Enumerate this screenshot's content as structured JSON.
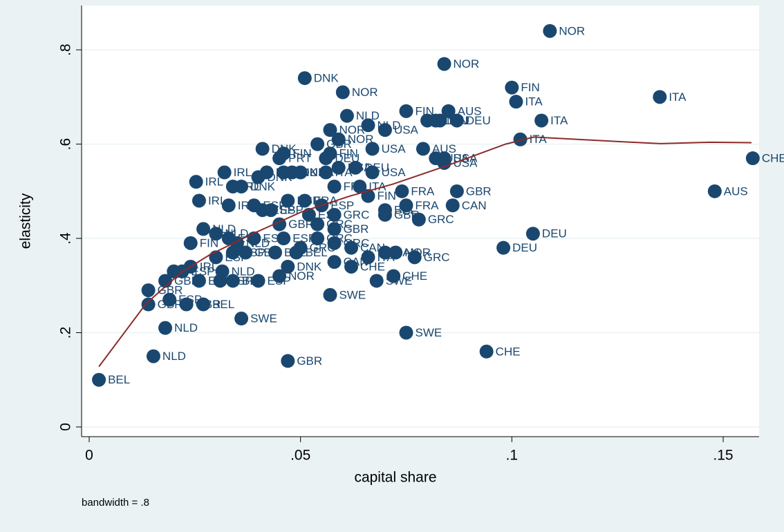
{
  "chart_data": {
    "type": "scatter",
    "xlabel": "capital share",
    "ylabel": "elasticity",
    "note": "bandwidth = .8",
    "xlim": [
      -0.0018,
      0.1585
    ],
    "ylim": [
      -0.0206,
      0.894
    ],
    "xticks": [
      0,
      {
        "value": 0.05,
        "label": ".05"
      },
      {
        "value": 0.1,
        "label": ".1"
      },
      {
        "value": 0.15,
        "label": ".15"
      }
    ],
    "yticks": [
      0,
      {
        "value": 0.2,
        "label": ".2"
      },
      {
        "value": 0.4,
        "label": ".4"
      },
      {
        "value": 0.6,
        "label": ".6"
      },
      {
        "value": 0.8,
        "label": ".8"
      }
    ],
    "grid": true,
    "color": "#1a476f",
    "x": [
      0.0023,
      0.0152,
      0.047,
      0.018,
      0.036,
      0.075,
      0.094,
      0.109,
      0.084,
      0.051,
      0.06,
      0.1,
      0.101,
      0.135,
      0.107,
      0.157,
      0.148,
      0.105,
      0.098,
      0.087,
      0.086,
      0.078,
      0.077,
      0.0725,
      0.072,
      0.068,
      0.057,
      0.074,
      0.075,
      0.079,
      0.084,
      0.102,
      0.032,
      0.041,
      0.026,
      0.0253,
      0.024,
      0.014,
      0.014,
      0.027,
      0.0315,
      0.027,
      0.061,
      0.067,
      0.058,
      0.085,
      0.084,
      0.075,
      0.08,
      0.082,
      0.083,
      0.087,
      0.066,
      0.07,
      0.057,
      0.059,
      0.054,
      0.067,
      0.046,
      0.056,
      0.057,
      0.082,
      0.046,
      0.048,
      0.05,
      0.059,
      0.063,
      0.056,
      0.058,
      0.064,
      0.066,
      0.039,
      0.043,
      0.047,
      0.051,
      0.055,
      0.058,
      0.052,
      0.045,
      0.054,
      0.07,
      0.07,
      0.033,
      0.035,
      0.039,
      0.046,
      0.05,
      0.054,
      0.058,
      0.062,
      0.07,
      0.066,
      0.062,
      0.047,
      0.03,
      0.034,
      0.037,
      0.044,
      0.049,
      0.058,
      0.02,
      0.022,
      0.026,
      0.031,
      0.034,
      0.04,
      0.045,
      0.019,
      0.023,
      0.018,
      0.024,
      0.03,
      0.036,
      0.034,
      0.04,
      0.042,
      0.045,
      0.033,
      0.041
    ],
    "values": [
      0.1,
      0.15,
      0.14,
      0.21,
      0.23,
      0.2,
      0.16,
      0.84,
      0.77,
      0.74,
      0.71,
      0.72,
      0.69,
      0.7,
      0.65,
      0.57,
      0.5,
      0.41,
      0.38,
      0.5,
      0.47,
      0.44,
      0.36,
      0.37,
      0.32,
      0.31,
      0.28,
      0.5,
      0.47,
      0.59,
      0.56,
      0.61,
      0.54,
      0.59,
      0.48,
      0.52,
      0.39,
      0.29,
      0.26,
      0.26,
      0.33,
      0.42,
      0.66,
      0.54,
      0.42,
      0.67,
      0.57,
      0.67,
      0.65,
      0.65,
      0.65,
      0.65,
      0.64,
      0.63,
      0.63,
      0.61,
      0.6,
      0.59,
      0.58,
      0.57,
      0.58,
      0.57,
      0.54,
      0.54,
      0.54,
      0.55,
      0.55,
      0.54,
      0.51,
      0.51,
      0.49,
      0.47,
      0.46,
      0.48,
      0.48,
      0.47,
      0.45,
      0.45,
      0.43,
      0.43,
      0.46,
      0.45,
      0.4,
      0.39,
      0.4,
      0.4,
      0.38,
      0.4,
      0.39,
      0.38,
      0.37,
      0.36,
      0.34,
      0.34,
      0.36,
      0.37,
      0.37,
      0.37,
      0.37,
      0.35,
      0.33,
      0.33,
      0.31,
      0.31,
      0.31,
      0.31,
      0.32,
      0.27,
      0.26,
      0.31,
      0.34,
      0.41,
      0.51,
      0.51,
      0.53,
      0.54,
      0.57,
      0.47,
      0.46
    ],
    "labels": [
      "BEL",
      "NLD",
      "GBR",
      "NLD",
      "SWE",
      "SWE",
      "CHE",
      "NOR",
      "NOR",
      "DNK",
      "NOR",
      "FIN",
      "ITA",
      "ITA",
      "ITA",
      "CHE",
      "AUS",
      "DEU",
      "DEU",
      "GBR",
      "CAN",
      "GRC",
      "GRC",
      "NOR",
      "CHE",
      "SWE",
      "SWE",
      "FRA",
      "FRA",
      "AUS",
      "USA",
      "ITA",
      "IRL",
      "DNK",
      "IRL",
      "IRL",
      "FIN",
      "GBR",
      "GBR",
      "BEL",
      "NLD",
      "NLD",
      "NLD",
      "USA",
      "GBR",
      "AUS",
      "USA",
      "FIN",
      "FIN",
      "DEU",
      "FIN",
      "DEU",
      "NLD",
      "USA",
      "NOR",
      "NOR",
      "GBR",
      "USA",
      "FIN",
      "DEU",
      "FIN",
      "USA",
      "DNK",
      "DNK",
      "USA",
      "USA",
      "DEU",
      "ITA",
      "FRA",
      "ITA",
      "FIN",
      "ESP",
      "ESP",
      "ESP",
      "FRA",
      "ESP",
      "GRC",
      "ESP",
      "GBR",
      "GRC",
      "BEL",
      "GBR",
      "ESP",
      "NLD",
      "ESP",
      "ESP",
      "GRC",
      "GRC",
      "GRC",
      "CAN",
      "CAN",
      "ITA",
      "CHE",
      "DNK",
      "ESP",
      "ESP",
      "GBR",
      "BEL",
      "BEL",
      "CAN",
      "IRL",
      "ESP",
      "ESP",
      "ESP",
      "BEL",
      "ESP",
      "NOR",
      "ESP",
      "GBR",
      "GBR",
      "IRL",
      "NLD",
      "DNK",
      "IRL",
      "DNK",
      "DNK",
      "PRT",
      "IRL",
      "ESP"
    ],
    "lowess": {
      "color": "#8b2a2a",
      "x": [
        0.0023,
        0.0135,
        0.0218,
        0.0285,
        0.0385,
        0.0502,
        0.0618,
        0.0718,
        0.0852,
        0.0985,
        0.1052,
        0.1218,
        0.1352,
        0.1468,
        0.1567
      ],
      "values": [
        0.128,
        0.262,
        0.328,
        0.365,
        0.409,
        0.456,
        0.49,
        0.515,
        0.556,
        0.6,
        0.615,
        0.607,
        0.601,
        0.604,
        0.603
      ]
    }
  }
}
